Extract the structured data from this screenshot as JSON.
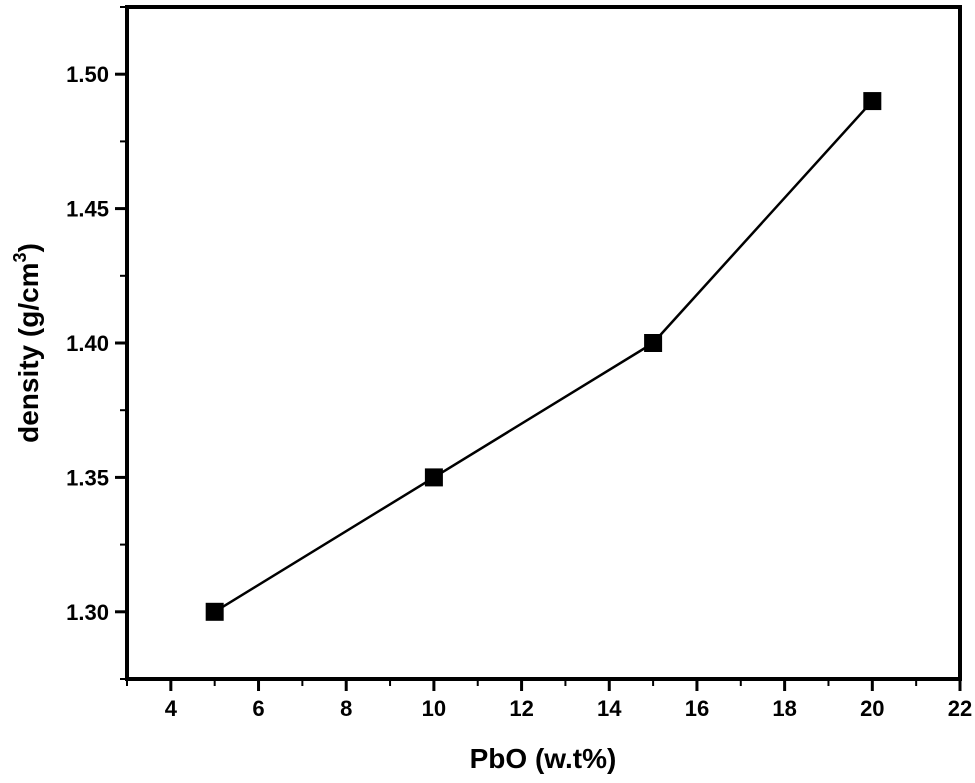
{
  "chart_data": {
    "type": "line",
    "xlabel": "PbO (w.t%)",
    "ylabel": {
      "main": "density (g/cm",
      "sup": "3",
      "close": ")"
    },
    "xlim": [
      3,
      22
    ],
    "ylim": [
      1.275,
      1.525
    ],
    "xticks": [
      4,
      6,
      8,
      10,
      12,
      14,
      16,
      18,
      20,
      22
    ],
    "yticks": [
      1.3,
      1.35,
      1.4,
      1.45,
      1.5
    ],
    "ytick_labels": [
      "1.30",
      "1.35",
      "1.40",
      "1.45",
      "1.50"
    ],
    "grid": false,
    "marker": "square",
    "series": [
      {
        "color": "#000000",
        "points": [
          {
            "x": 5,
            "y": 1.3
          },
          {
            "x": 10,
            "y": 1.35
          },
          {
            "x": 15,
            "y": 1.4
          },
          {
            "x": 20,
            "y": 1.49
          }
        ]
      }
    ]
  }
}
